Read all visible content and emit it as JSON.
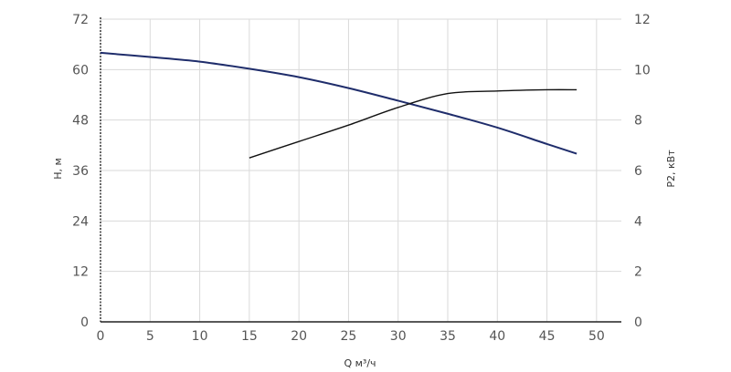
{
  "chart_data": {
    "type": "line",
    "xlabel": "Q м³/ч",
    "ylabel_left": "H, м",
    "ylabel_right": "P2, кВт",
    "x_ticks": [
      0,
      5,
      10,
      15,
      20,
      25,
      30,
      35,
      40,
      45,
      50
    ],
    "xlim": [
      0,
      52.5
    ],
    "ylim_left": [
      0,
      72
    ],
    "ylim_right": [
      0,
      12
    ],
    "y_ticks_left": [
      0,
      12,
      24,
      36,
      48,
      60,
      72
    ],
    "y_ticks_right": [
      0,
      2,
      4,
      6,
      8,
      10,
      12
    ],
    "grid": true,
    "series": [
      {
        "axis": "left",
        "color": "#1f2d6b",
        "x": [
          0,
          5,
          10,
          15,
          20,
          25,
          30,
          35,
          40,
          45,
          48
        ],
        "y": [
          64,
          63,
          61.9,
          60.2,
          58.2,
          55.6,
          52.6,
          49.5,
          46.2,
          42.3,
          40
        ]
      },
      {
        "axis": "right",
        "color": "#111111",
        "x": [
          15,
          20,
          25,
          30,
          35,
          40,
          45,
          48
        ],
        "y": [
          6.5,
          7.15,
          7.8,
          8.5,
          9.05,
          9.15,
          9.2,
          9.2
        ]
      }
    ]
  }
}
